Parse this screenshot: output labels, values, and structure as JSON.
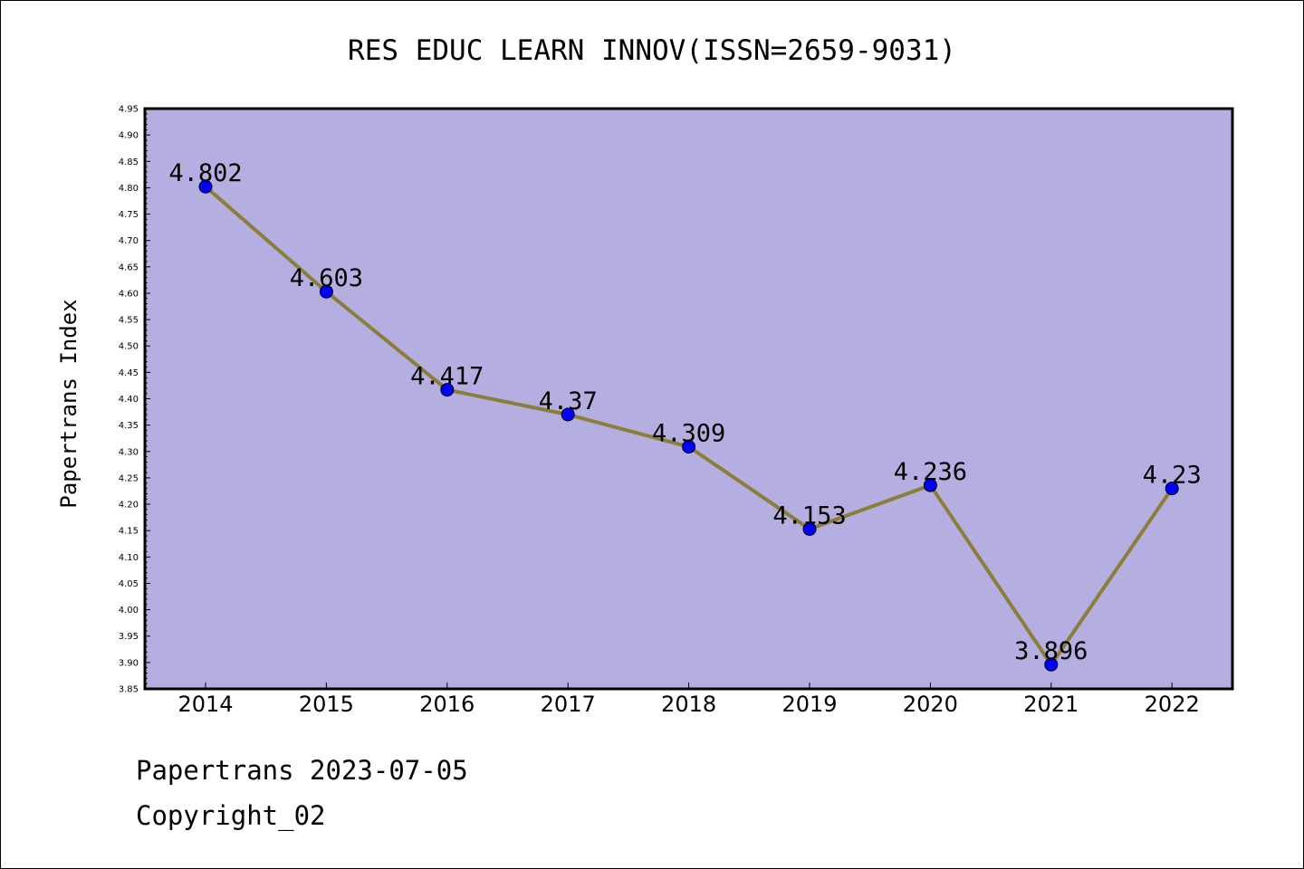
{
  "chart_data": {
    "type": "line",
    "title": "RES EDUC LEARN INNOV(ISSN=2659-9031)",
    "xlabel": "",
    "ylabel": "Papertrans Index",
    "categories": [
      "2014",
      "2015",
      "2016",
      "2017",
      "2018",
      "2019",
      "2020",
      "2021",
      "2022"
    ],
    "series": [
      {
        "values": [
          4.802,
          4.603,
          4.417,
          4.37,
          4.309,
          4.153,
          4.236,
          3.896,
          4.23
        ],
        "data_labels": [
          "4.802",
          "4.603",
          "4.417",
          "4.37",
          "4.309",
          "4.153",
          "4.236",
          "3.896",
          "4.23"
        ]
      }
    ],
    "ylim": [
      3.85,
      4.95
    ],
    "yticks": [
      "3.85",
      "3.90",
      "3.95",
      "4.00",
      "4.05",
      "4.10",
      "4.15",
      "4.20",
      "4.25",
      "4.30",
      "4.35",
      "4.40",
      "4.45",
      "4.50",
      "4.55",
      "4.60",
      "4.65",
      "4.70",
      "4.75",
      "4.80",
      "4.85",
      "4.90",
      "4.95"
    ],
    "grid": false,
    "legend": "none",
    "colors": {
      "plot_background": "#b5aee0",
      "line": "#8b7d3a",
      "marker": "#0000ff"
    }
  },
  "footer": {
    "line1": "Papertrans 2023-07-05",
    "line2": "Copyright_02"
  }
}
